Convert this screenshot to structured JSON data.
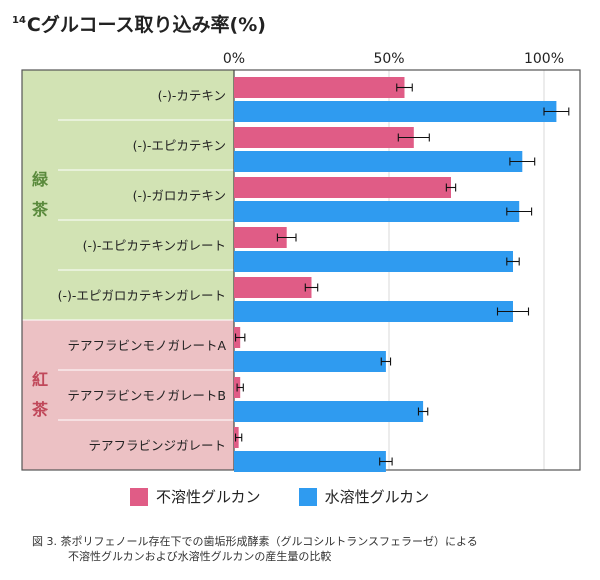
{
  "title_sup": "14",
  "title_main": "Cグルコース取り込み率(%)",
  "chart_data": {
    "type": "bar",
    "orientation": "horizontal",
    "categories": [
      "(-)-カテキン",
      "(-)-エピカテキン",
      "(-)-ガロカテキン",
      "(-)-エピカテキンガレート",
      "(-)-エピガロカテキンガレート",
      "テアフラビンモノガレートA",
      "テアフラビンモノガレートB",
      "テアフラビンジガレート"
    ],
    "groups": [
      {
        "label": "緑茶",
        "chars": [
          "緑",
          "茶"
        ],
        "count": 5,
        "color": "#d2e3b4",
        "text_color": "#5a8a3c"
      },
      {
        "label": "紅茶",
        "chars": [
          "紅",
          "茶"
        ],
        "count": 3,
        "color": "#ecc1c4",
        "text_color": "#c0485a"
      }
    ],
    "series": [
      {
        "name": "不溶性グルカン",
        "color": "#e05c86",
        "values": [
          55,
          58,
          70,
          17,
          25,
          2,
          2,
          1.5
        ],
        "errors": [
          2.5,
          5,
          1.5,
          3,
          2,
          1.5,
          1,
          1
        ]
      },
      {
        "name": "水溶性グルカン",
        "color": "#2f9bf0",
        "values": [
          104,
          93,
          92,
          90,
          90,
          49,
          61,
          49
        ],
        "errors": [
          4,
          4,
          4,
          2,
          5,
          1.5,
          1.5,
          2
        ]
      }
    ],
    "xticks": [
      "0%",
      "50%",
      "100%"
    ],
    "xtick_values": [
      0,
      50,
      100
    ],
    "xlim": [
      0,
      110
    ],
    "grid": true
  },
  "caption_line1": "図 3. 茶ポリフェノール存在下での歯垢形成酵素（グルコシルトランスフェラーゼ）による",
  "caption_line2": "不溶性グルカンおよび水溶性グルカンの産生量の比較"
}
